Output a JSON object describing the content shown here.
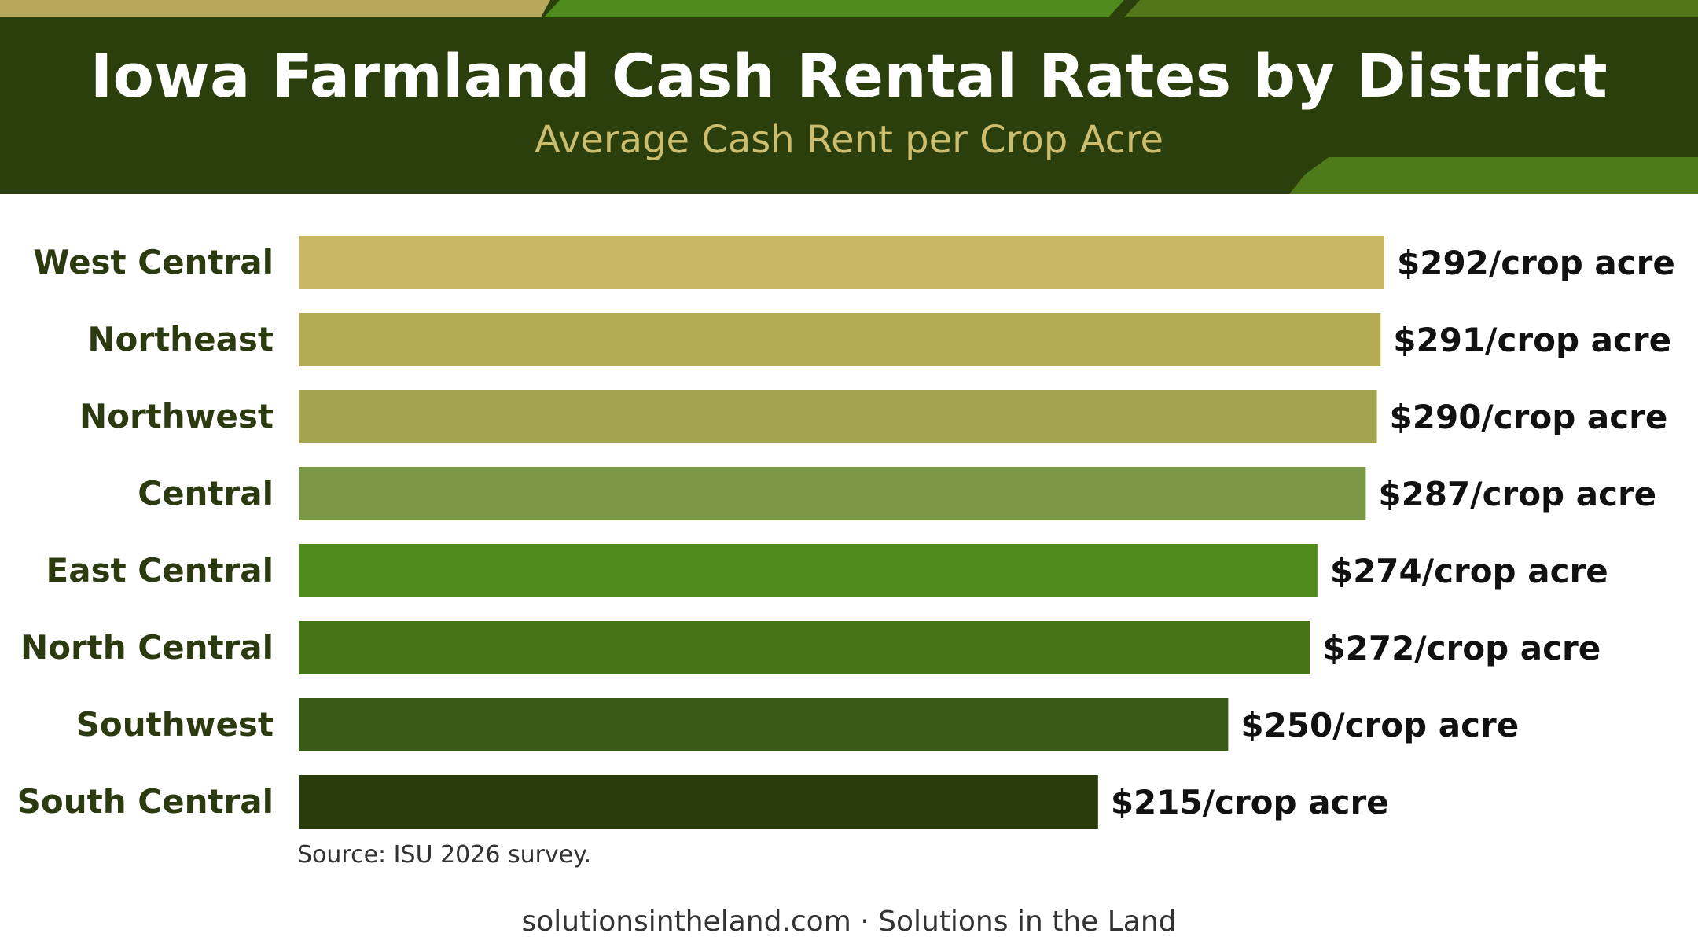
{
  "header": {
    "title": "Iowa Farmland Cash Rental Rates by District",
    "subtitle": "Average Cash Rent per Crop Acre"
  },
  "chart_data": {
    "type": "bar",
    "orientation": "horizontal",
    "categories": [
      "West Central",
      "Northeast",
      "Northwest",
      "Central",
      "East Central",
      "North Central",
      "Southwest",
      "South Central"
    ],
    "values": [
      292,
      291,
      290,
      287,
      274,
      272,
      250,
      215
    ],
    "data_labels": [
      "$292/crop acre",
      "$291/crop acre",
      "$290/crop acre",
      "$287/crop acre",
      "$274/crop acre",
      "$272/crop acre",
      "$250/crop acre",
      "$215/crop acre"
    ],
    "bar_colors": [
      "#c9b765",
      "#b4ac55",
      "#a3a54e",
      "#7a9845",
      "#4f8a1c",
      "#477417",
      "#3a5a17",
      "#2a3b0b"
    ],
    "xlim": [
      0,
      292
    ],
    "grid": false,
    "legend": "none"
  },
  "source": "Source: ISU 2026 survey.",
  "footer": "solutionsintheland.com · Solutions in the Land",
  "colors": {
    "header_bg": "#2a3f0b",
    "subtitle": "#cdbd6e",
    "label_text": "#2c3a10"
  }
}
